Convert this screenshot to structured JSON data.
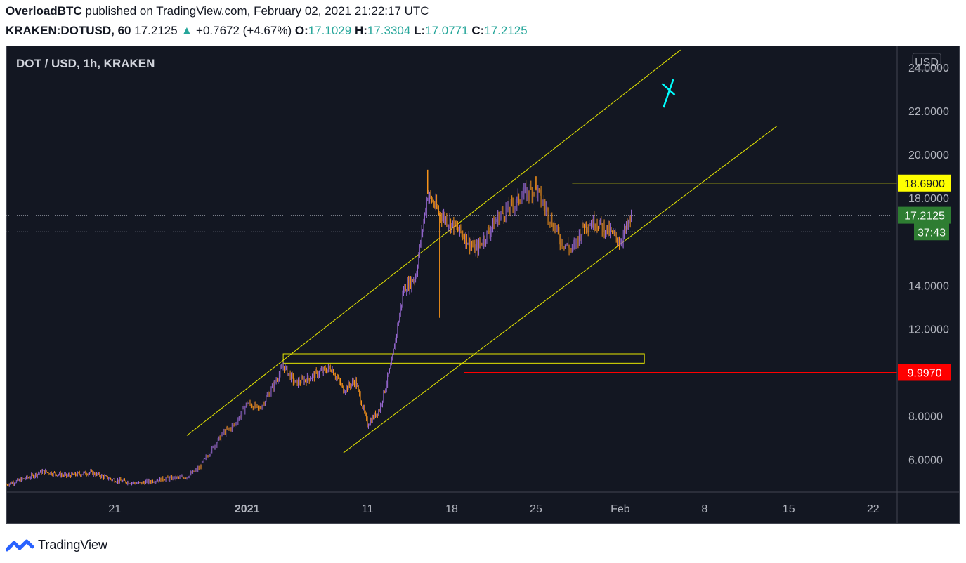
{
  "header": {
    "author": "OverloadBTC",
    "published_text": " published on TradingView.com, February 02, 2021 21:22:17 UTC",
    "symbol": "KRAKEN:DOTUSD, 60",
    "last": "17.2125",
    "change": "+0.7672 (+4.67%)",
    "o_label": "O:",
    "o_value": "17.1029",
    "h_label": "H:",
    "h_value": "17.3304",
    "l_label": "L:",
    "l_value": "17.0771",
    "c_label": "C:",
    "c_value": "17.2125"
  },
  "footer": {
    "brand": "TradingView",
    "logo_icon": "tradingview-logo-icon"
  },
  "colors": {
    "background": "#131722",
    "candle_up": "#9c6bd8",
    "candle_down": "#f7931a",
    "trendline": "#e6e600",
    "price_last": "#2e7d32",
    "level_red": "#ff0000",
    "level_yellow": "#ffff00",
    "axis_text": "#b2b5be",
    "cross_marker": "#00ffff"
  },
  "chart_data": {
    "type": "candlestick",
    "title": "DOT / USD, 1h, KRAKEN",
    "currency_label": "USD",
    "y_ticks": [
      "24.0000",
      "22.0000",
      "20.0000",
      "18.0000",
      "14.0000",
      "12.0000",
      "8.0000",
      "6.0000"
    ],
    "ylim": [
      4.5,
      25.0
    ],
    "x_ticks": [
      {
        "label": "21",
        "date": "2020-12-21",
        "bold": false
      },
      {
        "label": "2021",
        "date": "2021-01-01",
        "bold": true
      },
      {
        "label": "11",
        "date": "2021-01-11",
        "bold": false
      },
      {
        "label": "18",
        "date": "2021-01-18",
        "bold": false
      },
      {
        "label": "25",
        "date": "2021-01-25",
        "bold": false
      },
      {
        "label": "Feb",
        "date": "2021-02-01",
        "bold": false
      },
      {
        "label": "8",
        "date": "2021-02-08",
        "bold": false
      },
      {
        "label": "15",
        "date": "2021-02-15",
        "bold": false
      },
      {
        "label": "22",
        "date": "2021-02-22",
        "bold": false
      }
    ],
    "xlim": [
      "2020-12-12",
      "2021-02-24"
    ],
    "price_series": [
      {
        "date": "2020-12-12",
        "close": 4.85
      },
      {
        "date": "2020-12-14",
        "close": 5.2
      },
      {
        "date": "2020-12-15",
        "close": 5.45
      },
      {
        "date": "2020-12-17",
        "close": 5.25
      },
      {
        "date": "2020-12-19",
        "close": 5.4
      },
      {
        "date": "2020-12-21",
        "close": 5.05
      },
      {
        "date": "2020-12-23",
        "close": 4.9
      },
      {
        "date": "2020-12-25",
        "close": 5.1
      },
      {
        "date": "2020-12-27",
        "close": 5.2
      },
      {
        "date": "2020-12-28",
        "close": 5.6
      },
      {
        "date": "2020-12-29",
        "close": 6.4
      },
      {
        "date": "2020-12-30",
        "close": 7.2
      },
      {
        "date": "2020-12-31",
        "close": 7.6
      },
      {
        "date": "2021-01-01",
        "close": 8.6
      },
      {
        "date": "2021-01-02",
        "close": 8.3
      },
      {
        "date": "2021-01-03",
        "close": 9.2
      },
      {
        "date": "2021-01-04",
        "close": 10.3
      },
      {
        "date": "2021-01-05",
        "close": 9.5
      },
      {
        "date": "2021-01-06",
        "close": 9.7
      },
      {
        "date": "2021-01-07",
        "close": 10.0
      },
      {
        "date": "2021-01-08",
        "close": 10.2
      },
      {
        "date": "2021-01-09",
        "close": 9.2
      },
      {
        "date": "2021-01-10",
        "close": 9.6
      },
      {
        "date": "2021-01-11",
        "close": 7.6
      },
      {
        "date": "2021-01-12",
        "close": 8.3
      },
      {
        "date": "2021-01-13",
        "close": 10.4
      },
      {
        "date": "2021-01-14",
        "close": 13.8
      },
      {
        "date": "2021-01-15",
        "close": 14.4
      },
      {
        "date": "2021-01-16",
        "close": 18.2
      },
      {
        "date": "2021-01-17",
        "close": 17.3
      },
      {
        "date": "2021-01-18",
        "close": 16.8
      },
      {
        "date": "2021-01-19",
        "close": 16.3
      },
      {
        "date": "2021-01-20",
        "close": 15.6
      },
      {
        "date": "2021-01-21",
        "close": 16.4
      },
      {
        "date": "2021-01-22",
        "close": 17.2
      },
      {
        "date": "2021-01-23",
        "close": 17.6
      },
      {
        "date": "2021-01-24",
        "close": 18.2
      },
      {
        "date": "2021-01-25",
        "close": 18.4
      },
      {
        "date": "2021-01-26",
        "close": 17.3
      },
      {
        "date": "2021-01-27",
        "close": 16.1
      },
      {
        "date": "2021-01-28",
        "close": 15.6
      },
      {
        "date": "2021-01-29",
        "close": 16.8
      },
      {
        "date": "2021-01-30",
        "close": 16.9
      },
      {
        "date": "2021-01-31",
        "close": 16.5
      },
      {
        "date": "2021-02-01",
        "close": 16.0
      },
      {
        "date": "2021-02-02",
        "close": 17.2
      }
    ],
    "spikes": [
      {
        "date": "2021-01-17",
        "low": 12.5
      },
      {
        "date": "2021-01-16",
        "high": 19.3
      },
      {
        "date": "2021-01-25",
        "high": 19.0
      }
    ],
    "trendlines": [
      {
        "from": {
          "date": "2020-12-27",
          "price": 7.1
        },
        "to": {
          "date": "2021-02-06",
          "price": 24.8
        }
      },
      {
        "from": {
          "date": "2021-01-09",
          "price": 6.3
        },
        "to": {
          "date": "2021-02-14",
          "price": 21.3
        }
      }
    ],
    "horizontal_lines": [
      {
        "price": 18.69,
        "label": "18.6900",
        "from_date": "2021-01-28",
        "color": "#ffff00"
      },
      {
        "price": 9.997,
        "label": "9.9970",
        "from_date": "2021-01-19",
        "color": "#ff0000"
      }
    ],
    "dotted_lines": [
      {
        "price": 17.2125
      },
      {
        "price": 16.45
      }
    ],
    "rectangle": {
      "from_date": "2021-01-04",
      "to_date": "2021-02-03",
      "top": 10.85,
      "bottom": 10.42
    },
    "cross_marker": {
      "date": "2021-02-05",
      "price": 23.0
    },
    "price_labels": {
      "last_price": "17.2125",
      "countdown": "37:43",
      "yellow_level": "18.6900",
      "red_level": "9.9970"
    }
  }
}
